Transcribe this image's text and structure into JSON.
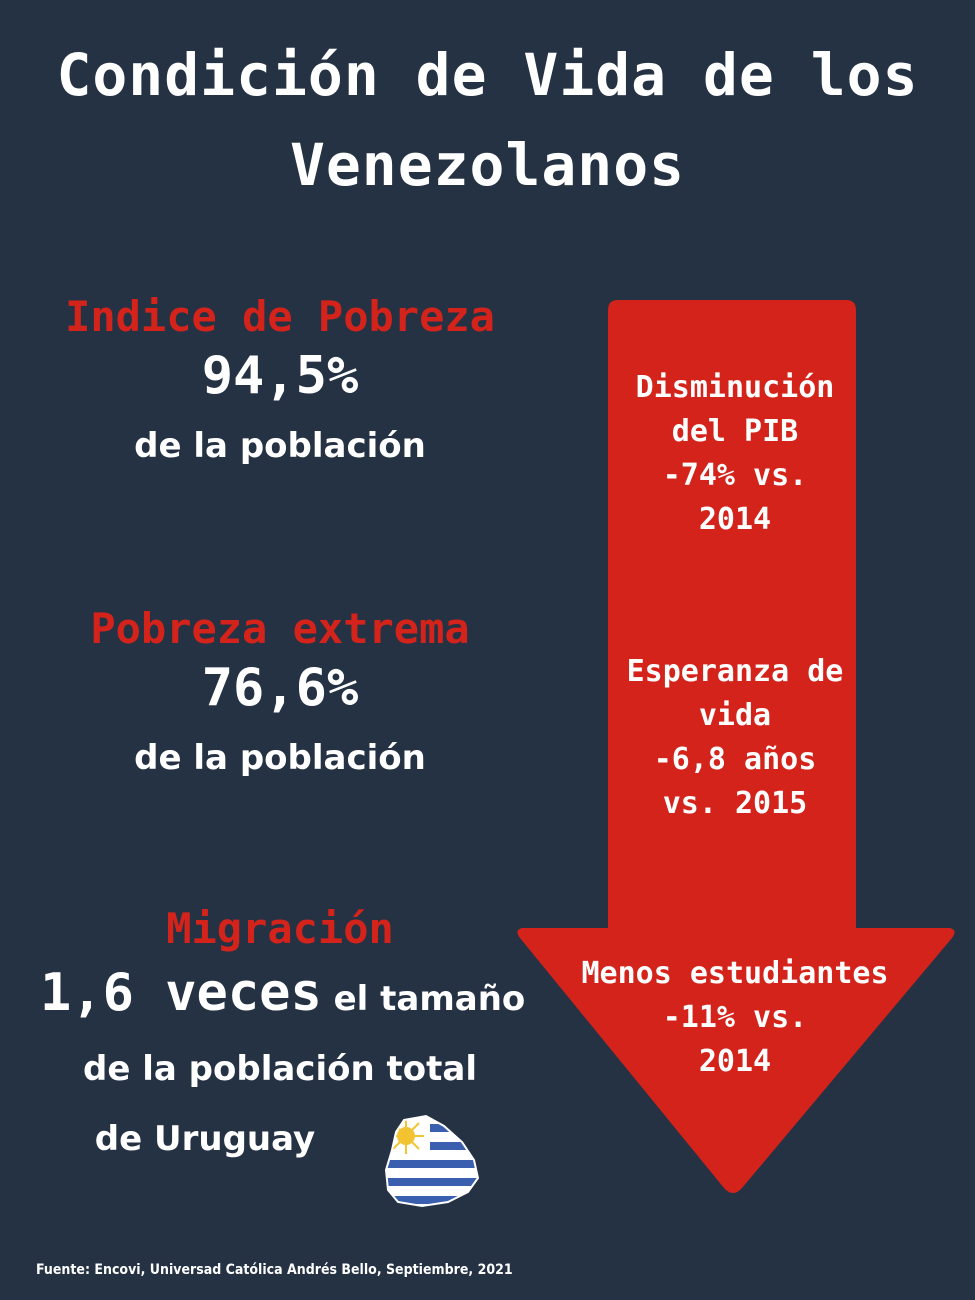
{
  "title": {
    "line1": "Condición de Vida de los",
    "line2": "Venezolanos"
  },
  "poverty": {
    "heading": "Indice de Pobreza",
    "value": "94,5%",
    "sub": "de la población"
  },
  "extreme": {
    "heading": "Pobreza extrema",
    "value": "76,6%",
    "sub": "de la población"
  },
  "migration": {
    "heading": "Migración",
    "value": "1,6 veces",
    "line1_rest": "el tamaño",
    "line2": "de la población total",
    "line3": "de Uruguay"
  },
  "arrow": {
    "pib": [
      "Disminución",
      "del PIB",
      "-74% vs.",
      "2014"
    ],
    "life": [
      "Esperanza de",
      "vida",
      "-6,8 años",
      "vs. 2015"
    ],
    "students": [
      "Menos estudiantes",
      "-11% vs.",
      "2014"
    ]
  },
  "footer": "Fuente: Encovi, Universad Católica Andrés Bello, Septiembre, 2021",
  "colors": {
    "background": "#243244",
    "accent_red": "#d4231b",
    "text": "#ffffff"
  },
  "icons": {
    "map": "uruguay-map-icon"
  }
}
